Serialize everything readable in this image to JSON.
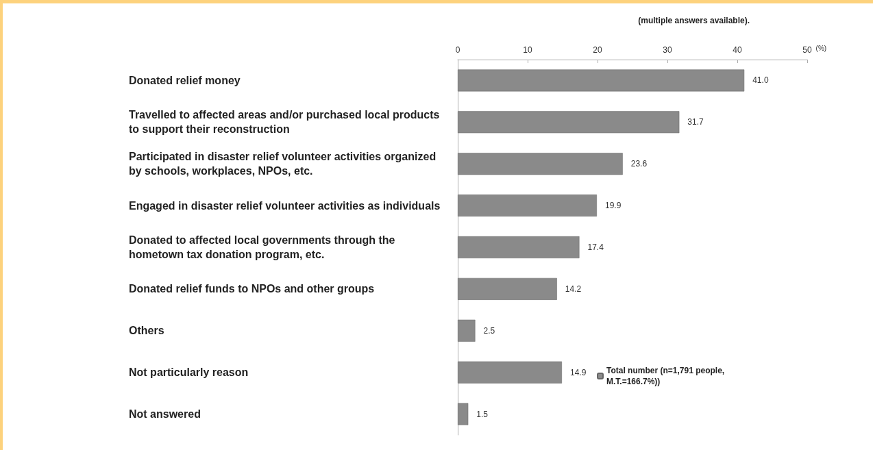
{
  "chart_data": {
    "type": "bar",
    "orientation": "horizontal",
    "title": "(multiple answers available).",
    "xlabel": "(%)",
    "categories": [
      "Donated relief money",
      "Travelled to affected areas and/or purchased local products to support their reconstruction",
      "Participated in disaster relief volunteer activities organized by schools, workplaces, NPOs, etc.",
      "Engaged in disaster relief volunteer activities as individuals",
      "Donated to affected local governments through the hometown tax donation program, etc.",
      "Donated relief funds to NPOs and other groups",
      "Others",
      "Not particularly reason",
      "Not answered"
    ],
    "series": [
      {
        "name": "Total number (n=1,791 people, M.T.=166.7%))",
        "color": "#8a8a8a",
        "values": [
          41.0,
          31.7,
          23.6,
          19.9,
          17.4,
          14.2,
          2.5,
          14.9,
          1.5
        ],
        "value_labels": [
          "41.0",
          "31.7",
          "23.6",
          "19.9",
          "17.4",
          "14.2",
          "2.5",
          "14.9",
          "1.5"
        ]
      }
    ],
    "xlim": [
      0,
      50
    ],
    "xticks": [
      0,
      10,
      20,
      30,
      40,
      50
    ],
    "grid": false,
    "legend": "bottom right"
  }
}
